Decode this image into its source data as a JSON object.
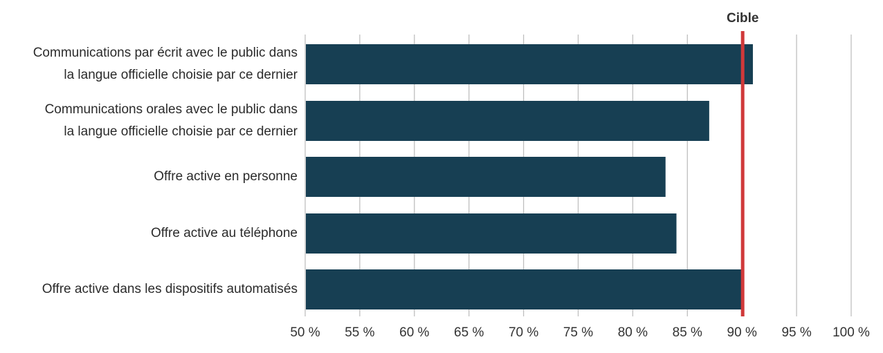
{
  "colors": {
    "bar": "#173f53",
    "target_line": "#d0393a",
    "grid": "#bfbfbf",
    "text": "#2b2b2b"
  },
  "chart_data": {
    "type": "bar",
    "orientation": "horizontal",
    "title": "",
    "xlabel": "",
    "ylabel": "",
    "categories": [
      [
        "Communications par écrit avec le public dans",
        "la langue officielle choisie par ce dernier"
      ],
      [
        "Communications orales avec le public dans",
        "la langue officielle choisie par ce dernier"
      ],
      [
        "Offre active en personne"
      ],
      [
        "Offre active au téléphone"
      ],
      [
        "Offre active dans les dispositifs automatisés"
      ]
    ],
    "values": [
      91,
      87,
      83,
      84,
      90
    ],
    "xlim": [
      50,
      100
    ],
    "ticks": [
      50,
      55,
      60,
      65,
      70,
      75,
      80,
      85,
      90,
      95,
      100
    ],
    "tick_labels": [
      "50 %",
      "55 %",
      "60 %",
      "65 %",
      "70 %",
      "75 %",
      "80 %",
      "85 %",
      "90 %",
      "95 %",
      "100 %"
    ],
    "grid": true,
    "target": {
      "value": 90,
      "label": "Cible"
    }
  }
}
